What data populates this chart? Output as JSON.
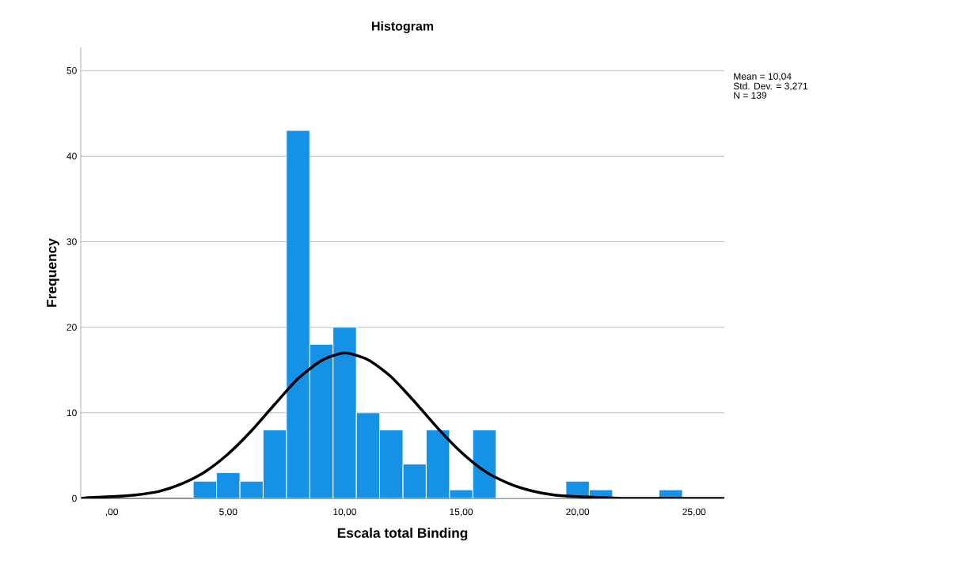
{
  "chart_data": {
    "type": "histogram",
    "title": "Histogram",
    "xlabel": "Escala total Binding",
    "ylabel": "Frequency",
    "bins": [
      3.5,
      4.5,
      5.5,
      6.5,
      7.5,
      8.5,
      9.5,
      10.5,
      11.5,
      12.5,
      13.5,
      14.5,
      15.5,
      16.5,
      17.5,
      18.5,
      19.5,
      20.5,
      21.5,
      22.5,
      23.5,
      24.5
    ],
    "series": [
      {
        "color": "#1591e6",
        "values": [
          2,
          3,
          2,
          8,
          43,
          18,
          20,
          10,
          8,
          4,
          8,
          1,
          8,
          0,
          0,
          0,
          2,
          1,
          0,
          0,
          1
        ]
      },
      {
        "type": "line",
        "color": "#000000",
        "x": [
          -1.3,
          -1,
          0,
          1,
          2,
          3,
          4,
          5,
          6,
          7,
          8,
          9,
          10,
          11,
          12,
          13,
          14,
          15,
          16,
          17,
          18,
          19,
          20,
          21,
          22,
          23,
          24,
          25,
          26.3
        ],
        "values": [
          0.0,
          0.1,
          0.2,
          0.4,
          0.8,
          1.7,
          3.1,
          5.2,
          7.9,
          11.0,
          14.0,
          16.1,
          17.0,
          16.2,
          14.2,
          11.3,
          8.2,
          5.4,
          3.2,
          1.8,
          0.9,
          0.4,
          0.2,
          0.1,
          0.0,
          0.0,
          0.0,
          0.0,
          0.0
        ]
      }
    ],
    "xlim": [
      -1.33,
      26.3
    ],
    "ylim": [
      0,
      52.7
    ],
    "xticks": [
      {
        "value": 0,
        "label": ",00"
      },
      {
        "value": 5,
        "label": "5,00"
      },
      {
        "value": 10,
        "label": "10,00"
      },
      {
        "value": 15,
        "label": "15,00"
      },
      {
        "value": 20,
        "label": "20,00"
      },
      {
        "value": 25,
        "label": "25,00"
      }
    ],
    "yticks": [
      0,
      10,
      20,
      30,
      40,
      50
    ],
    "grid": "y",
    "marker": "none",
    "line_style": "solid",
    "annotations": [
      "Mean = 10,04",
      "Std. Dev. = 3,271",
      "N = 139"
    ]
  }
}
